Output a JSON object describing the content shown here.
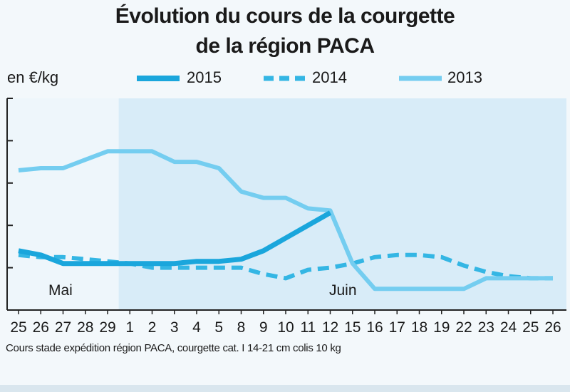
{
  "title_line1": "Évolution du cours de la courgette",
  "title_line2": "de la région PACA",
  "unit_label": "en €/kg",
  "source_note": "Cours stade expédition région PACA, courgette cat. I 14-21 cm colis 10 kg",
  "colors": {
    "series_2015": "#1aa6dc",
    "series_2014": "#34b6e4",
    "series_2013": "#74cdf0",
    "plot_bg_may": "#eef6fb",
    "plot_bg_june": "#d8ecf8",
    "axis": "#222222"
  },
  "chart_data": {
    "type": "line",
    "title": "Évolution du cours de la courgette de la région PACA",
    "ylabel": "en €/kg",
    "xlabel": "",
    "ylim": [
      0,
      5
    ],
    "y_tick_count": 5,
    "y_tick_labels_shown": false,
    "categories": [
      "25",
      "26",
      "27",
      "28",
      "29",
      "1",
      "2",
      "3",
      "4",
      "5",
      "8",
      "9",
      "10",
      "11",
      "12",
      "15",
      "16",
      "17",
      "18",
      "19",
      "22",
      "23",
      "24",
      "25",
      "26"
    ],
    "month_labels": [
      {
        "label": "Mai",
        "category_index": 2
      },
      {
        "label": "Juin",
        "category_index": 14.6
      }
    ],
    "series": [
      {
        "name": "2015",
        "style": "solid-thick",
        "values": [
          1.4,
          1.3,
          1.1,
          1.1,
          1.1,
          1.1,
          1.1,
          1.1,
          1.15,
          1.15,
          1.2,
          1.4,
          1.7,
          2.0,
          2.3,
          null,
          null,
          null,
          null,
          null,
          null,
          null,
          null,
          null,
          null
        ]
      },
      {
        "name": "2014",
        "style": "dashed",
        "values": [
          1.3,
          1.25,
          1.25,
          1.2,
          1.15,
          1.1,
          1.0,
          1.0,
          1.0,
          1.0,
          1.0,
          0.85,
          0.75,
          0.95,
          1.0,
          1.1,
          1.25,
          1.3,
          1.3,
          1.25,
          1.05,
          0.9,
          0.8,
          0.75,
          0.75
        ]
      },
      {
        "name": "2013",
        "style": "solid",
        "values": [
          3.3,
          3.35,
          3.35,
          3.55,
          3.75,
          3.75,
          3.75,
          3.5,
          3.5,
          3.35,
          2.8,
          2.65,
          2.65,
          2.4,
          2.35,
          1.1,
          0.5,
          0.5,
          0.5,
          0.5,
          0.5,
          0.75,
          0.75,
          0.75,
          0.75
        ]
      }
    ],
    "legend_position": "top"
  }
}
